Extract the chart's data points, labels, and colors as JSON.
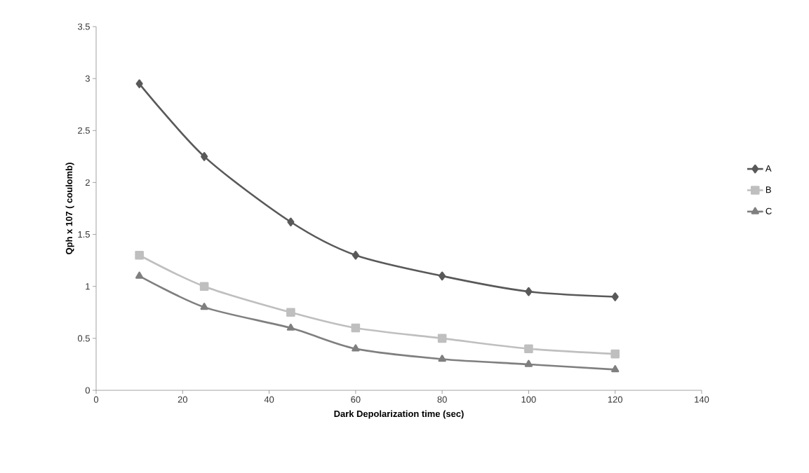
{
  "chart_data": {
    "type": "line",
    "xlabel": "Dark Depolarization time (sec)",
    "ylabel": "Qph x 107 ( coulomb)",
    "x": [
      10,
      25,
      45,
      60,
      80,
      100,
      120
    ],
    "series": [
      {
        "name": "A",
        "color": "#595959",
        "marker": "diamond",
        "values": [
          2.95,
          2.25,
          1.62,
          1.3,
          1.1,
          0.95,
          0.9
        ]
      },
      {
        "name": "B",
        "color": "#bfbfbf",
        "marker": "square",
        "values": [
          1.3,
          1.0,
          0.75,
          0.6,
          0.5,
          0.4,
          0.35
        ]
      },
      {
        "name": "C",
        "color": "#7f7f7f",
        "marker": "triangle",
        "values": [
          1.1,
          0.8,
          0.6,
          0.4,
          0.3,
          0.25,
          0.2
        ]
      }
    ],
    "xlim": [
      0,
      140
    ],
    "xticks": [
      0,
      20,
      40,
      60,
      80,
      100,
      120,
      140
    ],
    "ylim": [
      0,
      3.5
    ],
    "yticks": [
      0,
      0.5,
      1,
      1.5,
      2,
      2.5,
      3,
      3.5
    ],
    "grid": false,
    "legend": "right",
    "line_style": "solid"
  }
}
